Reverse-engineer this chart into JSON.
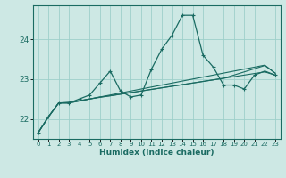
{
  "xlabel": "Humidex (Indice chaleur)",
  "bg_color": "#cde8e4",
  "grid_color": "#9ecfca",
  "line_color": "#1a6b62",
  "x": [
    0,
    1,
    2,
    3,
    4,
    5,
    6,
    7,
    8,
    9,
    10,
    11,
    12,
    13,
    14,
    15,
    16,
    17,
    18,
    19,
    20,
    21,
    22,
    23
  ],
  "y_main": [
    21.65,
    22.05,
    22.4,
    22.4,
    22.5,
    22.6,
    22.9,
    23.2,
    22.7,
    22.55,
    22.6,
    23.25,
    23.75,
    24.1,
    24.6,
    24.6,
    23.6,
    23.3,
    22.85,
    22.85,
    22.75,
    23.1,
    23.2,
    23.1
  ],
  "y_line2": [
    21.65,
    22.05,
    22.4,
    22.4,
    22.45,
    22.5,
    22.55,
    22.58,
    22.62,
    22.66,
    22.7,
    22.74,
    22.78,
    22.82,
    22.86,
    22.9,
    22.94,
    22.98,
    23.02,
    23.06,
    23.1,
    23.14,
    23.18,
    23.1
  ],
  "y_line3": [
    21.65,
    22.05,
    22.4,
    22.4,
    22.45,
    22.5,
    22.55,
    22.6,
    22.65,
    22.7,
    22.75,
    22.8,
    22.85,
    22.9,
    22.95,
    23.0,
    23.05,
    23.1,
    23.15,
    23.2,
    23.25,
    23.3,
    23.35,
    23.15
  ],
  "y_line4": [
    21.65,
    22.05,
    22.4,
    22.42,
    22.46,
    22.5,
    22.54,
    22.58,
    22.62,
    22.66,
    22.7,
    22.74,
    22.78,
    22.82,
    22.86,
    22.9,
    22.94,
    22.98,
    23.02,
    23.1,
    23.18,
    23.26,
    23.34,
    23.15
  ],
  "ylim": [
    21.5,
    24.85
  ],
  "yticks": [
    22,
    23,
    24
  ],
  "xlim": [
    -0.5,
    23.5
  ]
}
